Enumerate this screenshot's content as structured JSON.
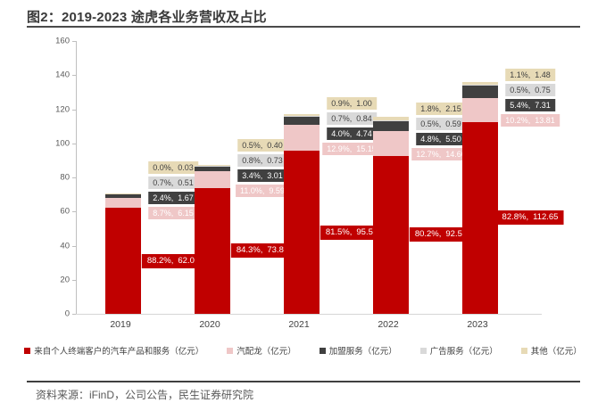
{
  "header": {
    "title": "图2：2019-2023 途虎各业务营收及占比"
  },
  "footer": {
    "source": "资料来源：iFinD，公司公告，民生证券研究院"
  },
  "chart_data": {
    "type": "bar",
    "stacked": true,
    "title": "图2：2019-2023 途虎各业务营收及占比",
    "categories": [
      "2019",
      "2020",
      "2021",
      "2022",
      "2023"
    ],
    "series": [
      {
        "name": "来自个人终端客户的汽车产品和服务（亿元）",
        "color": "#c00000",
        "label_text_color": "#ffffff",
        "values": [
          62.04,
          73.81,
          95.51,
          92.56,
          112.65
        ],
        "value_labels": [
          "62.04",
          "73.81",
          "95.51",
          "92.56",
          "112.65"
        ],
        "pct_labels": [
          "88.2%,",
          "84.3%,",
          "81.5%,",
          "80.2%,",
          "82.8%,"
        ]
      },
      {
        "name": "汽配龙（亿元）",
        "color": "#efc7c7",
        "label_text_color": "#ffffff",
        "values": [
          6.15,
          9.59,
          15.15,
          14.66,
          13.81
        ],
        "value_labels": [
          "6.15",
          "9.59",
          "15.15",
          "14.66",
          "13.81"
        ],
        "pct_labels": [
          "8.7%,",
          "11.0%,",
          "12.9%,",
          "12.7%,",
          "10.2%,"
        ]
      },
      {
        "name": "加盟服务（亿元）",
        "color": "#404040",
        "label_text_color": "#ffffff",
        "values": [
          1.67,
          3.01,
          4.74,
          5.5,
          7.31
        ],
        "value_labels": [
          "1.67",
          "3.01",
          "4.74",
          "5.50",
          "7.31"
        ],
        "pct_labels": [
          "2.4%,",
          "3.4%,",
          "4.0%,",
          "4.8%,",
          "5.4%,"
        ]
      },
      {
        "name": "广告服务（亿元）",
        "color": "#d9d9d9",
        "label_text_color": "#404040",
        "values": [
          0.51,
          0.73,
          0.84,
          0.59,
          0.75
        ],
        "value_labels": [
          "0.51",
          "0.73",
          "0.84",
          "0.59",
          "0.75"
        ],
        "pct_labels": [
          "0.7%,",
          "0.8%,",
          "0.7%,",
          "0.5%,",
          "0.5%,"
        ]
      },
      {
        "name": "其他（亿元）",
        "color": "#e7dab6",
        "label_text_color": "#404040",
        "values": [
          0.03,
          0.4,
          1.0,
          2.15,
          1.48
        ],
        "value_labels": [
          "0.03",
          "0.40",
          "1.00",
          "2.15",
          "1.48"
        ],
        "pct_labels": [
          "0.0%,",
          "0.5%,",
          "0.9%,",
          "1.8%,",
          "1.1%,"
        ]
      }
    ],
    "ylim": [
      0,
      160
    ],
    "yticks": [
      0,
      20,
      40,
      60,
      80,
      100,
      120,
      140,
      160
    ],
    "xlabel": "",
    "ylabel": "",
    "grid": false,
    "legend_position": "bottom"
  }
}
